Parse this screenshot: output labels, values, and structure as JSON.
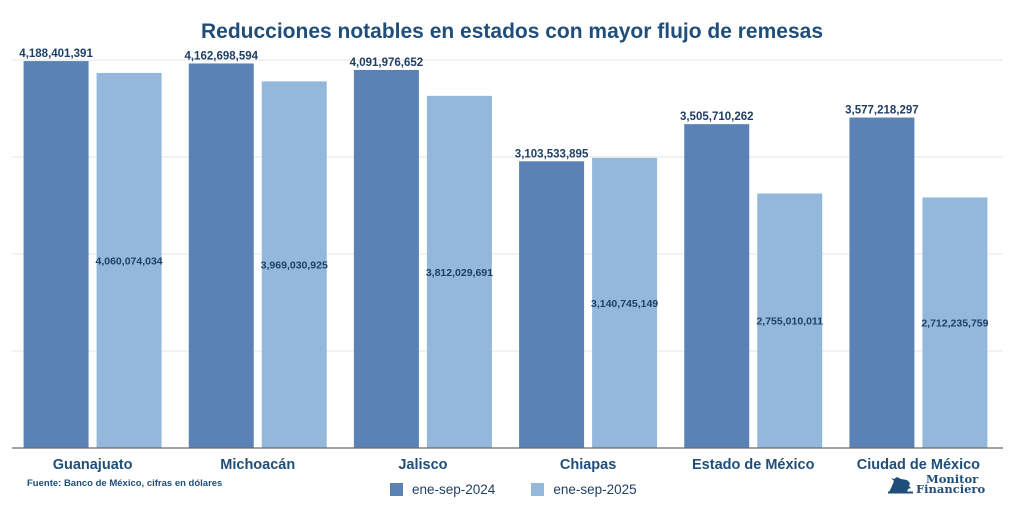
{
  "chart_data": {
    "type": "bar",
    "title": "Reducciones notables en estados con mayor flujo de remesas",
    "xlabel": "",
    "ylabel": "",
    "categories": [
      "Guanajuato",
      "Michoacán",
      "Jalisco",
      "Chiapas",
      "Estado de México",
      "Ciudad de México"
    ],
    "series": [
      {
        "name": "ene-sep-2024",
        "color": "#5b82b5",
        "values": [
          4188401391,
          4162698594,
          4091976652,
          3103533895,
          3505710262,
          3577218297
        ],
        "labels": [
          "4,188,401,391",
          "4,162,698,594",
          "4,091,976,652",
          "3,103,533,895",
          "3,505,710,262",
          "3,577,218,297"
        ],
        "label_position": "outside-end"
      },
      {
        "name": "ene-sep-2025",
        "color": "#93b8db",
        "values": [
          4060074034,
          3969030925,
          3812029691,
          3140745149,
          2755010011,
          2712235759
        ],
        "labels": [
          "4,060,074,034",
          "3,969,030,925",
          "3,812,029,691",
          "3,140,745,149",
          "2,755,010,011",
          "2,712,235,759"
        ],
        "label_position": "center"
      }
    ],
    "ylim": [
      0,
      4200000000
    ],
    "gridlines": 4,
    "grid": true,
    "y_tick_labels_visible": false,
    "legend": "bottom-center"
  },
  "source_note": "Fuente: Banco de México, cifras en dólares",
  "logo": {
    "line1": "Monitor",
    "line2": "Financiero",
    "icon": "bull-icon"
  }
}
